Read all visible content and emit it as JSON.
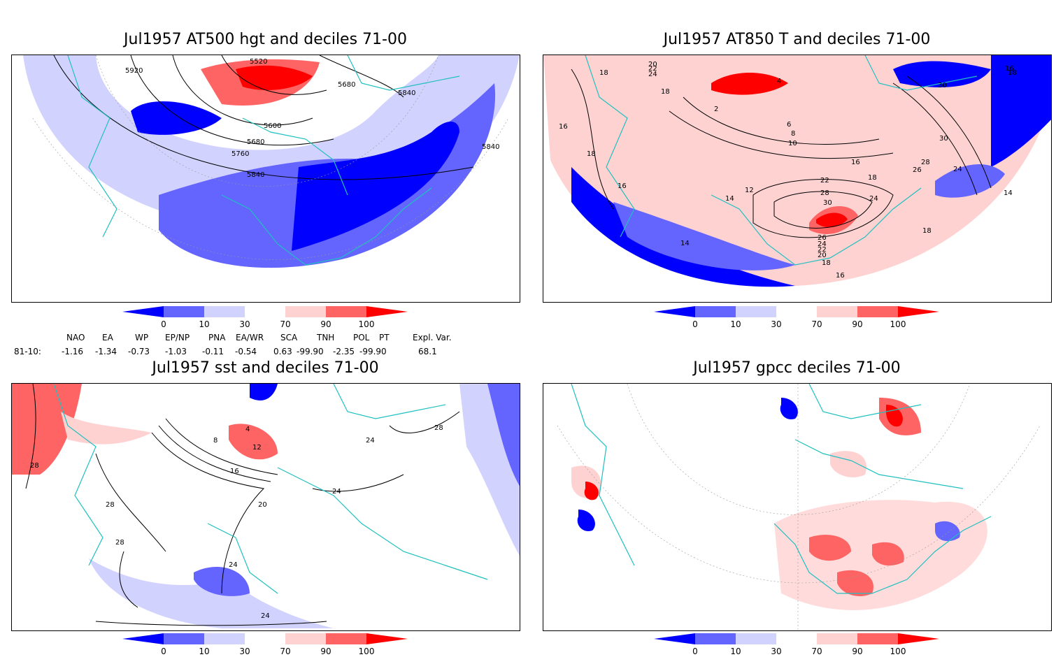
{
  "panels": [
    {
      "title": "Jul1957 AT500 hgt and deciles 71-00",
      "contour_labels": [
        "5920",
        "5520",
        "5680",
        "5840",
        "5600",
        "5680",
        "5760",
        "5840",
        "5840"
      ]
    },
    {
      "title": "Jul1957 AT850 T and deciles 71-00",
      "contour_labels": [
        "24",
        "22",
        "20",
        "18",
        "18",
        "16",
        "16",
        "18",
        "16",
        "14",
        "12",
        "14",
        "30",
        "30",
        "28",
        "26",
        "24",
        "24",
        "22",
        "28",
        "30",
        "26",
        "24",
        "22",
        "20",
        "18",
        "16",
        "16",
        "18",
        "2",
        "4",
        "6",
        "8",
        "10",
        "14",
        "16",
        "18",
        "18",
        "14"
      ]
    },
    {
      "title": "Jul1957 sst and deciles 71-00",
      "contour_labels": [
        "28",
        "28",
        "28",
        "24",
        "24",
        "24",
        "20",
        "16",
        "12",
        "8",
        "4",
        "28",
        "24"
      ]
    },
    {
      "title": "Jul1957 gpcc deciles 71-00",
      "contour_labels": []
    }
  ],
  "colorbar": {
    "ticks": [
      "0",
      "10",
      "30",
      "70",
      "90",
      "100"
    ],
    "colors": [
      "#0000ff",
      "#6464ff",
      "#d2d2ff",
      "#ffffff",
      "#ffd2d2",
      "#ff6464",
      "#ff0000"
    ]
  },
  "indices": {
    "headers": [
      "NAO",
      "EA",
      "WP",
      "EP/NP",
      "PNA",
      "EA/WR",
      "SCA",
      "TNH",
      "POL",
      "PT",
      "Expl. Var."
    ],
    "row_label": "81-10:",
    "values": [
      "-1.16",
      "-1.34",
      "-0.73",
      "-1.03",
      "-0.11",
      "-0.54",
      "0.63",
      "-99.90",
      "-2.35",
      "-99.90",
      "68.1"
    ]
  },
  "colors": {
    "coast": "#20c0c0",
    "contour": "#000000",
    "grid": "#888888"
  }
}
